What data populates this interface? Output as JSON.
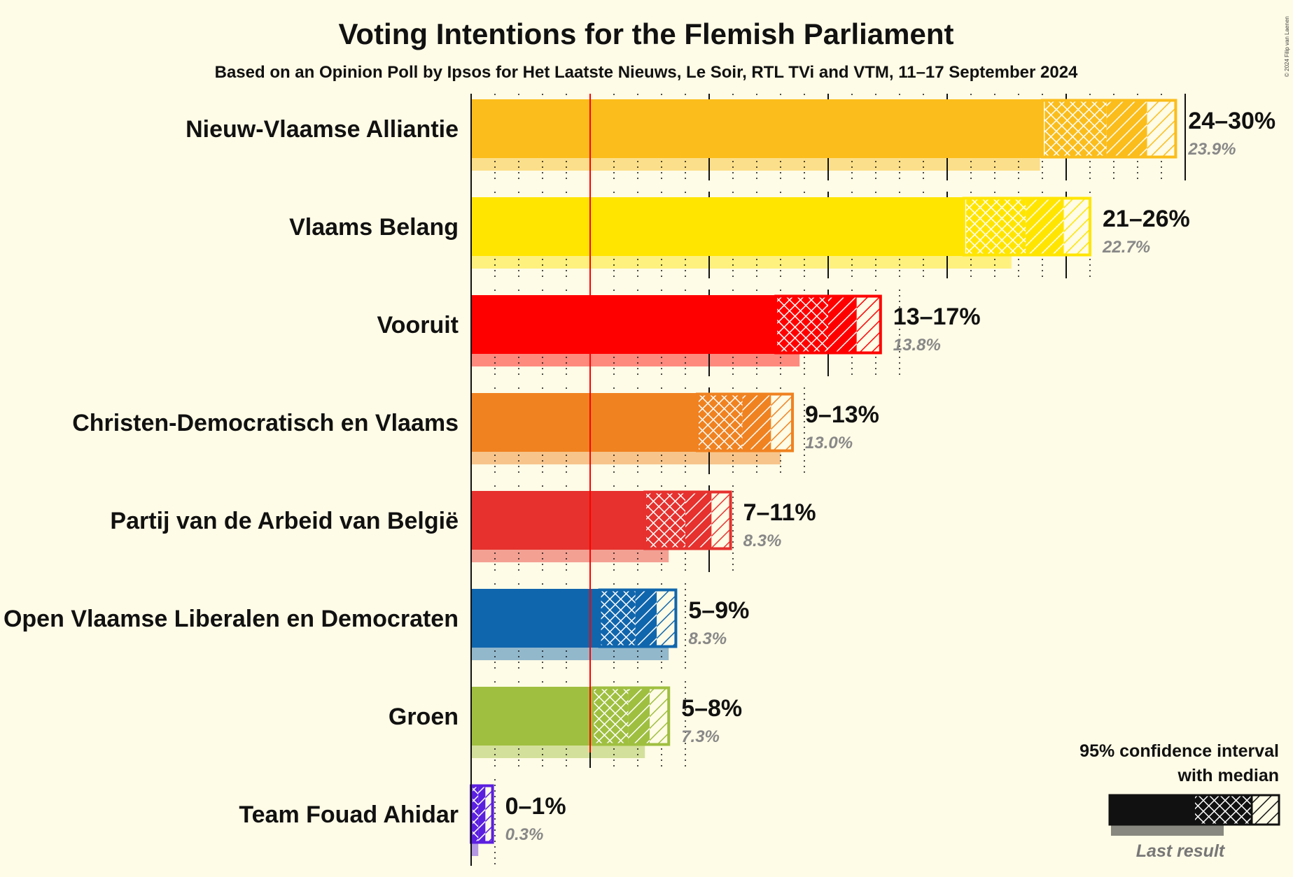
{
  "chart_data": {
    "type": "bar",
    "title": "Voting Intentions for the Flemish Parliament",
    "subtitle": "Based on an Opinion Poll by Ipsos for Het Laatste Nieuws, Le Soir, RTL TVi and VTM, 11–17 September 2024",
    "copyright": "© 2024 Filip van Laenen",
    "x_unit": "%",
    "threshold": 5,
    "grid": "dotted every 1%, solid every 5%",
    "series": [
      {
        "name": "Nieuw-Vlaamse Alliantie",
        "color": "#fbbd1b",
        "ci95": [
          24,
          29.6
        ],
        "ci80": [
          24.1,
          28.4
        ],
        "median": 26.7,
        "range_label": "24–30%",
        "last": 23.9,
        "last_label": "23.9%"
      },
      {
        "name": "Vlaams Belang",
        "color": "#ffe500",
        "ci95": [
          20.7,
          26
        ],
        "ci80": [
          20.8,
          24.9
        ],
        "median": 23.3,
        "range_label": "21–26%",
        "last": 22.7,
        "last_label": "22.7%"
      },
      {
        "name": "Vooruit",
        "color": "#ff0000",
        "ci95": [
          12.8,
          17.2
        ],
        "ci80": [
          12.8,
          16.2
        ],
        "median": 15,
        "range_label": "13–17%",
        "last": 13.8,
        "last_label": "13.8%"
      },
      {
        "name": "Christen-Democratisch en Vlaams",
        "color": "#f08220",
        "ci95": [
          9.5,
          13.5
        ],
        "ci80": [
          9.5,
          12.6
        ],
        "median": 11.4,
        "range_label": "9–13%",
        "last": 13.0,
        "last_label": "13.0%"
      },
      {
        "name": "Partij van de Arbeid van België",
        "color": "#e6312e",
        "ci95": [
          7.3,
          10.9
        ],
        "ci80": [
          7.3,
          10.1
        ],
        "median": 9.0,
        "range_label": "7–11%",
        "last": 8.3,
        "last_label": "8.3%"
      },
      {
        "name": "Open Vlaamse Liberalen en Democraten",
        "color": "#1066ad",
        "ci95": [
          5.4,
          8.6
        ],
        "ci80": [
          5.4,
          7.8
        ],
        "median": 6.9,
        "range_label": "5–9%",
        "last": 8.3,
        "last_label": "8.3%"
      },
      {
        "name": "Groen",
        "color": "#9fbf40",
        "ci95": [
          5.1,
          8.3
        ],
        "ci80": [
          5.1,
          7.5
        ],
        "median": 6.6,
        "range_label": "5–8%",
        "last": 7.3,
        "last_label": "7.3%"
      },
      {
        "name": "Team Fouad Ahidar",
        "color": "#5b1fe0",
        "ci95": [
          0,
          0.9
        ],
        "ci80": [
          0,
          0.6
        ],
        "median": 0.3,
        "range_label": "0–1%",
        "last": 0.3,
        "last_label": "0.3%"
      }
    ],
    "legend": {
      "title_line1": "95% confidence interval",
      "title_line2": "with median",
      "last_result": "Last result",
      "placement": "bottom-right"
    }
  }
}
